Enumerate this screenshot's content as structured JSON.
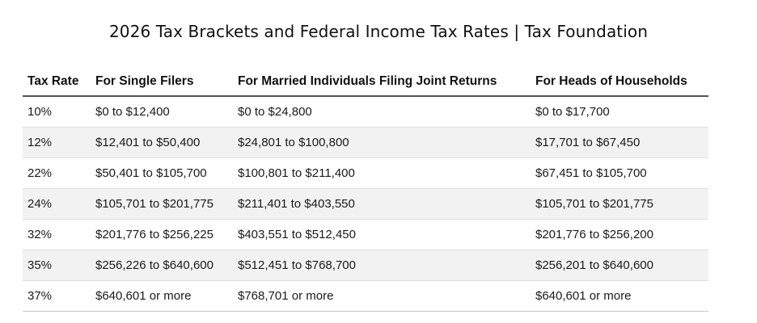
{
  "title": "2026 Tax Brackets and Federal Income Tax Rates | Tax Foundation",
  "table": {
    "headers": [
      "Tax Rate",
      "For Single Filers",
      "For Married Individuals Filing Joint Returns",
      "For Heads of Households"
    ],
    "rows": [
      [
        "10%",
        "$0 to $12,400",
        "$0 to $24,800",
        "$0 to $17,700"
      ],
      [
        "12%",
        "$12,401 to $50,400",
        "$24,801 to $100,800",
        "$17,701 to $67,450"
      ],
      [
        "22%",
        "$50,401 to $105,700",
        "$100,801 to $211,400",
        "$67,451 to $105,700"
      ],
      [
        "24%",
        "$105,701 to $201,775",
        "$211,401 to $403,550",
        "$105,701 to $201,775"
      ],
      [
        "32%",
        "$201,776 to $256,225",
        "$403,551 to $512,450",
        "$201,776 to $256,200"
      ],
      [
        "35%",
        "$256,226 to $640,600",
        "$512,451 to $768,700",
        "$256,201 to $640,600"
      ],
      [
        "37%",
        "$640,601 or more",
        "$768,701 or more",
        "$640,601 or more"
      ]
    ]
  },
  "colors": {
    "stripe": "#f2f2f2",
    "header_rule": "#555555",
    "row_rule": "#dedede"
  }
}
